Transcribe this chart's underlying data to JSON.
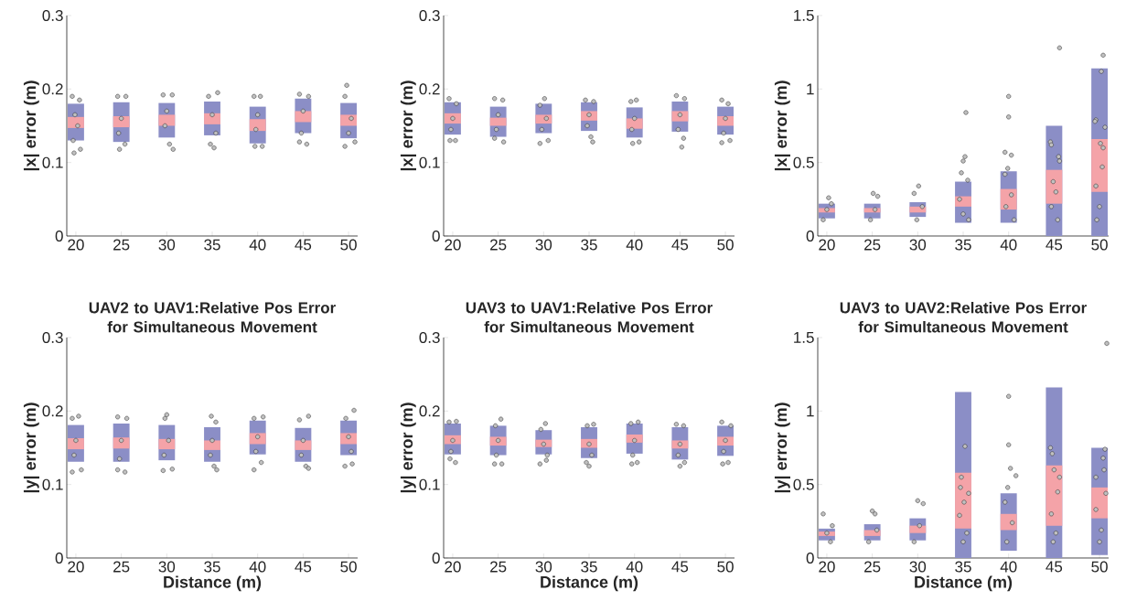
{
  "chart_data": [
    {
      "type": "bar",
      "ylabel": "|x| error (m)",
      "xlim": [
        19,
        51
      ],
      "xticks": [
        20,
        25,
        30,
        35,
        40,
        45,
        50
      ],
      "ylim": [
        0,
        0.3
      ],
      "yticks": [
        0,
        0.1,
        0.2,
        0.3
      ],
      "series": [
        {
          "color": "#8b8ec6",
          "x": [
            20,
            25,
            30,
            35,
            40,
            45,
            50
          ],
          "base": [
            0.13,
            0.128,
            0.134,
            0.137,
            0.126,
            0.14,
            0.133
          ],
          "values": [
            0.05,
            0.054,
            0.047,
            0.046,
            0.05,
            0.047,
            0.048
          ]
        },
        {
          "color": "#f4a3a8",
          "x": [
            20,
            25,
            30,
            35,
            40,
            45,
            50
          ],
          "base": [
            0.147,
            0.148,
            0.15,
            0.152,
            0.143,
            0.155,
            0.15
          ],
          "values": [
            0.015,
            0.015,
            0.015,
            0.015,
            0.016,
            0.015,
            0.015
          ]
        },
        {
          "type": "scatter",
          "marker": "circle",
          "color": "#c0c0c0",
          "x": [
            19.6,
            20.4,
            19.9,
            20.2,
            19.7,
            20.5,
            19.8,
            24.6,
            25.5,
            25.0,
            24.7,
            25.4,
            24.8,
            29.6,
            30.6,
            30.0,
            29.8,
            30.3,
            30.7,
            35.6,
            34.6,
            35.0,
            35.4,
            34.8,
            35.2,
            39.6,
            40.3,
            40.0,
            39.8,
            40.5,
            39.7,
            44.6,
            45.6,
            45.0,
            44.8,
            45.4,
            44.6,
            49.8,
            49.6,
            50.3,
            50.0,
            49.6,
            50.7
          ],
          "values": [
            0.19,
            0.185,
            0.165,
            0.15,
            0.13,
            0.118,
            0.113,
            0.19,
            0.19,
            0.16,
            0.14,
            0.125,
            0.118,
            0.192,
            0.192,
            0.17,
            0.15,
            0.125,
            0.118,
            0.195,
            0.19,
            0.165,
            0.14,
            0.125,
            0.12,
            0.19,
            0.19,
            0.165,
            0.145,
            0.122,
            0.122,
            0.193,
            0.19,
            0.17,
            0.14,
            0.125,
            0.128,
            0.205,
            0.19,
            0.16,
            0.14,
            0.122,
            0.128
          ]
        }
      ]
    },
    {
      "type": "bar",
      "ylabel": "|x| error (m)",
      "xlim": [
        19,
        51
      ],
      "xticks": [
        20,
        25,
        30,
        35,
        40,
        45,
        50
      ],
      "ylim": [
        0,
        0.3
      ],
      "yticks": [
        0,
        0.1,
        0.2,
        0.3
      ],
      "series": [
        {
          "color": "#8b8ec6",
          "x": [
            20,
            25,
            30,
            35,
            40,
            45,
            50
          ],
          "base": [
            0.138,
            0.135,
            0.14,
            0.143,
            0.134,
            0.142,
            0.138
          ],
          "values": [
            0.044,
            0.041,
            0.04,
            0.039,
            0.041,
            0.041,
            0.038
          ]
        },
        {
          "color": "#f4a3a8",
          "x": [
            20,
            25,
            30,
            35,
            40,
            45,
            50
          ],
          "base": [
            0.153,
            0.15,
            0.153,
            0.157,
            0.146,
            0.156,
            0.15
          ],
          "values": [
            0.014,
            0.011,
            0.012,
            0.013,
            0.014,
            0.014,
            0.013
          ]
        },
        {
          "type": "scatter",
          "marker": "circle",
          "color": "#c0c0c0",
          "x": [
            19.6,
            20.4,
            20.0,
            19.8,
            20.3,
            19.7,
            24.6,
            25.5,
            25.0,
            24.8,
            24.6,
            25.6,
            29.6,
            30.1,
            30.3,
            29.8,
            30.5,
            29.6,
            34.6,
            35.5,
            35.0,
            34.8,
            35.2,
            35.4,
            39.6,
            40.2,
            40.0,
            39.7,
            40.5,
            39.8,
            44.6,
            45.5,
            45.0,
            44.8,
            45.4,
            45.2,
            49.6,
            50.3,
            50.0,
            49.8,
            50.5,
            49.6
          ],
          "values": [
            0.187,
            0.18,
            0.16,
            0.145,
            0.13,
            0.13,
            0.187,
            0.185,
            0.165,
            0.145,
            0.133,
            0.128,
            0.178,
            0.187,
            0.16,
            0.145,
            0.13,
            0.126,
            0.185,
            0.183,
            0.165,
            0.15,
            0.135,
            0.128,
            0.183,
            0.185,
            0.16,
            0.145,
            0.128,
            0.126,
            0.191,
            0.187,
            0.165,
            0.145,
            0.133,
            0.121,
            0.185,
            0.18,
            0.16,
            0.14,
            0.13,
            0.127
          ]
        }
      ]
    },
    {
      "type": "bar",
      "ylabel": "|x| error (m)",
      "xlim": [
        19,
        51
      ],
      "xticks": [
        20,
        25,
        30,
        35,
        40,
        45,
        50
      ],
      "ylim": [
        0,
        1.5
      ],
      "yticks": [
        0,
        0.5,
        1,
        1.5
      ],
      "series": [
        {
          "color": "#8b8ec6",
          "x": [
            20,
            25,
            30,
            35,
            40,
            45,
            50
          ],
          "base": [
            0.12,
            0.12,
            0.13,
            0.09,
            0.09,
            0,
            0
          ],
          "values": [
            0.1,
            0.1,
            0.1,
            0.28,
            0.35,
            0.75,
            1.14
          ]
        },
        {
          "color": "#f4a3a8",
          "x": [
            20,
            25,
            30,
            35,
            40,
            45,
            50
          ],
          "base": [
            0.16,
            0.16,
            0.16,
            0.2,
            0.18,
            0.22,
            0.3
          ],
          "values": [
            0.03,
            0.03,
            0.04,
            0.07,
            0.14,
            0.23,
            0.36
          ]
        },
        {
          "type": "scatter",
          "marker": "circle",
          "color": "#c0c0c0",
          "x": [
            20.2,
            19.6,
            20.0,
            20.5,
            25.1,
            25.6,
            24.8,
            25.3,
            30.1,
            29.6,
            29.9,
            30.5,
            35.3,
            35.2,
            35.0,
            34.8,
            35.5,
            34.6,
            35.0,
            35.6,
            40.0,
            40.0,
            39.6,
            40.3,
            39.9,
            39.6,
            40.3,
            39.7,
            40.6,
            45.6,
            44.6,
            44.7,
            45.5,
            45.6,
            44.9,
            45.2,
            44.7,
            45.4,
            50.4,
            50.2,
            49.6,
            49.5,
            50.6,
            50.1,
            50.4,
            50.3,
            49.6,
            50.0,
            49.7
          ],
          "values": [
            0.26,
            0.11,
            0.18,
            0.22,
            0.29,
            0.27,
            0.11,
            0.18,
            0.34,
            0.29,
            0.11,
            0.2,
            0.84,
            0.54,
            0.51,
            0.43,
            0.38,
            0.25,
            0.15,
            0.11,
            0.95,
            0.81,
            0.57,
            0.55,
            0.46,
            0.42,
            0.28,
            0.2,
            0.11,
            1.28,
            0.64,
            0.62,
            0.54,
            0.51,
            0.37,
            0.3,
            0.2,
            0.11,
            1.23,
            1.12,
            0.79,
            0.78,
            0.74,
            0.63,
            0.6,
            0.47,
            0.34,
            0.2,
            0.11
          ]
        }
      ]
    },
    {
      "type": "bar",
      "title": "UAV2 to UAV1:Relative Pos Error for Simultaneous Movement",
      "xlabel": "Distance (m)",
      "ylabel": "|y| error (m)",
      "xlim": [
        19,
        51
      ],
      "xticks": [
        20,
        25,
        30,
        35,
        40,
        45,
        50
      ],
      "ylim": [
        0,
        0.3
      ],
      "yticks": [
        0,
        0.1,
        0.2,
        0.3
      ],
      "series": [
        {
          "color": "#8b8ec6",
          "x": [
            20,
            25,
            30,
            35,
            40,
            45,
            50
          ],
          "base": [
            0.131,
            0.131,
            0.133,
            0.131,
            0.141,
            0.131,
            0.14
          ],
          "values": [
            0.05,
            0.052,
            0.048,
            0.047,
            0.046,
            0.046,
            0.047
          ]
        },
        {
          "color": "#f4a3a8",
          "x": [
            20,
            25,
            30,
            35,
            40,
            45,
            50
          ],
          "base": [
            0.148,
            0.149,
            0.148,
            0.147,
            0.155,
            0.147,
            0.155
          ],
          "values": [
            0.015,
            0.015,
            0.014,
            0.013,
            0.015,
            0.013,
            0.015
          ]
        },
        {
          "type": "scatter",
          "marker": "circle",
          "color": "#c0c0c0",
          "x": [
            19.6,
            20.3,
            20.0,
            19.8,
            20.6,
            19.6,
            24.6,
            25.6,
            25.0,
            24.8,
            25.4,
            24.6,
            29.8,
            30.0,
            30.2,
            29.7,
            30.6,
            29.6,
            34.9,
            35.4,
            35.0,
            34.8,
            35.2,
            35.5,
            39.6,
            40.6,
            40.0,
            39.8,
            40.4,
            39.6,
            44.6,
            45.6,
            45.0,
            44.8,
            45.3,
            45.6,
            50.6,
            49.7,
            50.0,
            50.3,
            49.6,
            50.4
          ],
          "values": [
            0.19,
            0.193,
            0.16,
            0.14,
            0.12,
            0.117,
            0.192,
            0.19,
            0.16,
            0.135,
            0.117,
            0.12,
            0.19,
            0.195,
            0.16,
            0.14,
            0.121,
            0.119,
            0.193,
            0.185,
            0.16,
            0.14,
            0.125,
            0.12,
            0.19,
            0.192,
            0.165,
            0.145,
            0.13,
            0.12,
            0.188,
            0.193,
            0.16,
            0.14,
            0.125,
            0.122,
            0.201,
            0.19,
            0.165,
            0.145,
            0.125,
            0.128
          ]
        }
      ]
    },
    {
      "type": "bar",
      "title": "UAV3 to UAV1:Relative Pos Error for Simultaneous Movement",
      "xlabel": "Distance (m)",
      "ylabel": "|y| error (m)",
      "xlim": [
        19,
        51
      ],
      "xticks": [
        20,
        25,
        30,
        35,
        40,
        45,
        50
      ],
      "ylim": [
        0,
        0.3
      ],
      "yticks": [
        0,
        0.1,
        0.2,
        0.3
      ],
      "series": [
        {
          "color": "#8b8ec6",
          "x": [
            20,
            25,
            30,
            35,
            40,
            45,
            50
          ],
          "base": [
            0.141,
            0.14,
            0.141,
            0.136,
            0.142,
            0.134,
            0.139
          ],
          "values": [
            0.042,
            0.04,
            0.033,
            0.042,
            0.041,
            0.044,
            0.041
          ]
        },
        {
          "color": "#f4a3a8",
          "x": [
            20,
            25,
            30,
            35,
            40,
            45,
            50
          ],
          "base": [
            0.155,
            0.153,
            0.151,
            0.15,
            0.157,
            0.149,
            0.153
          ],
          "values": [
            0.012,
            0.012,
            0.01,
            0.012,
            0.011,
            0.011,
            0.012
          ]
        },
        {
          "type": "scatter",
          "marker": "circle",
          "color": "#c0c0c0",
          "x": [
            19.6,
            20.4,
            20.0,
            19.8,
            20.3,
            19.7,
            25.3,
            24.7,
            25.0,
            24.8,
            24.6,
            25.4,
            30.2,
            29.7,
            30.0,
            30.4,
            29.6,
            30.3,
            35.5,
            34.8,
            35.0,
            35.3,
            34.7,
            35.0,
            39.6,
            40.4,
            40.0,
            39.8,
            39.7,
            40.3,
            44.6,
            45.4,
            45.0,
            44.8,
            45.5,
            45.0,
            49.6,
            50.6,
            50.0,
            49.8,
            50.3,
            49.7
          ],
          "values": [
            0.185,
            0.186,
            0.16,
            0.145,
            0.13,
            0.135,
            0.189,
            0.18,
            0.16,
            0.14,
            0.128,
            0.128,
            0.183,
            0.175,
            0.155,
            0.14,
            0.128,
            0.133,
            0.182,
            0.18,
            0.155,
            0.14,
            0.13,
            0.125,
            0.183,
            0.185,
            0.16,
            0.14,
            0.128,
            0.13,
            0.182,
            0.18,
            0.155,
            0.14,
            0.13,
            0.125,
            0.185,
            0.18,
            0.16,
            0.145,
            0.13,
            0.128
          ]
        }
      ]
    },
    {
      "type": "bar",
      "title": "UAV3 to UAV2:Relative Pos Error for Simultaneous Movement",
      "xlabel": "Distance (m)",
      "ylabel": "|y| error (m)",
      "xlim": [
        19,
        51
      ],
      "xticks": [
        20,
        25,
        30,
        35,
        40,
        45,
        50
      ],
      "ylim": [
        0,
        1.5
      ],
      "yticks": [
        0,
        0.5,
        1,
        1.5
      ],
      "series": [
        {
          "color": "#8b8ec6",
          "x": [
            20,
            25,
            30,
            35,
            40,
            45,
            50
          ],
          "base": [
            0.12,
            0.12,
            0.12,
            0,
            0.05,
            0,
            0.02
          ],
          "values": [
            0.08,
            0.11,
            0.15,
            1.13,
            0.39,
            1.16,
            0.73
          ]
        },
        {
          "color": "#f4a3a8",
          "x": [
            20,
            25,
            30,
            35,
            40,
            45,
            50
          ],
          "base": [
            0.15,
            0.15,
            0.17,
            0.2,
            0.19,
            0.22,
            0.27
          ],
          "values": [
            0.03,
            0.04,
            0.05,
            0.38,
            0.11,
            0.41,
            0.21
          ]
        },
        {
          "type": "scatter",
          "marker": "circle",
          "color": "#c0c0c0",
          "x": [
            19.6,
            20.4,
            20.0,
            20.6,
            25.0,
            25.3,
            24.6,
            25.5,
            30.0,
            30.6,
            29.6,
            30.2,
            35.2,
            34.8,
            34.7,
            35.6,
            35.1,
            34.6,
            35.4,
            35.0,
            40.0,
            40.0,
            40.2,
            40.8,
            39.9,
            39.6,
            40.4,
            39.8,
            44.6,
            44.8,
            45.0,
            45.6,
            45.4,
            44.7,
            45.2,
            44.9,
            50.8,
            50.6,
            50.4,
            50.5,
            49.6,
            50.7,
            49.6,
            50.2,
            50.0
          ],
          "values": [
            0.3,
            0.11,
            0.17,
            0.22,
            0.32,
            0.3,
            0.11,
            0.19,
            0.39,
            0.37,
            0.11,
            0.22,
            0.76,
            0.55,
            0.48,
            0.44,
            0.38,
            0.29,
            0.17,
            0.11,
            1.1,
            0.77,
            0.61,
            0.56,
            0.48,
            0.38,
            0.24,
            0.11,
            0.75,
            0.71,
            0.6,
            0.55,
            0.45,
            0.3,
            0.17,
            0.11,
            1.46,
            0.74,
            0.68,
            0.6,
            0.55,
            0.44,
            0.33,
            0.19,
            0.11
          ]
        }
      ]
    }
  ]
}
